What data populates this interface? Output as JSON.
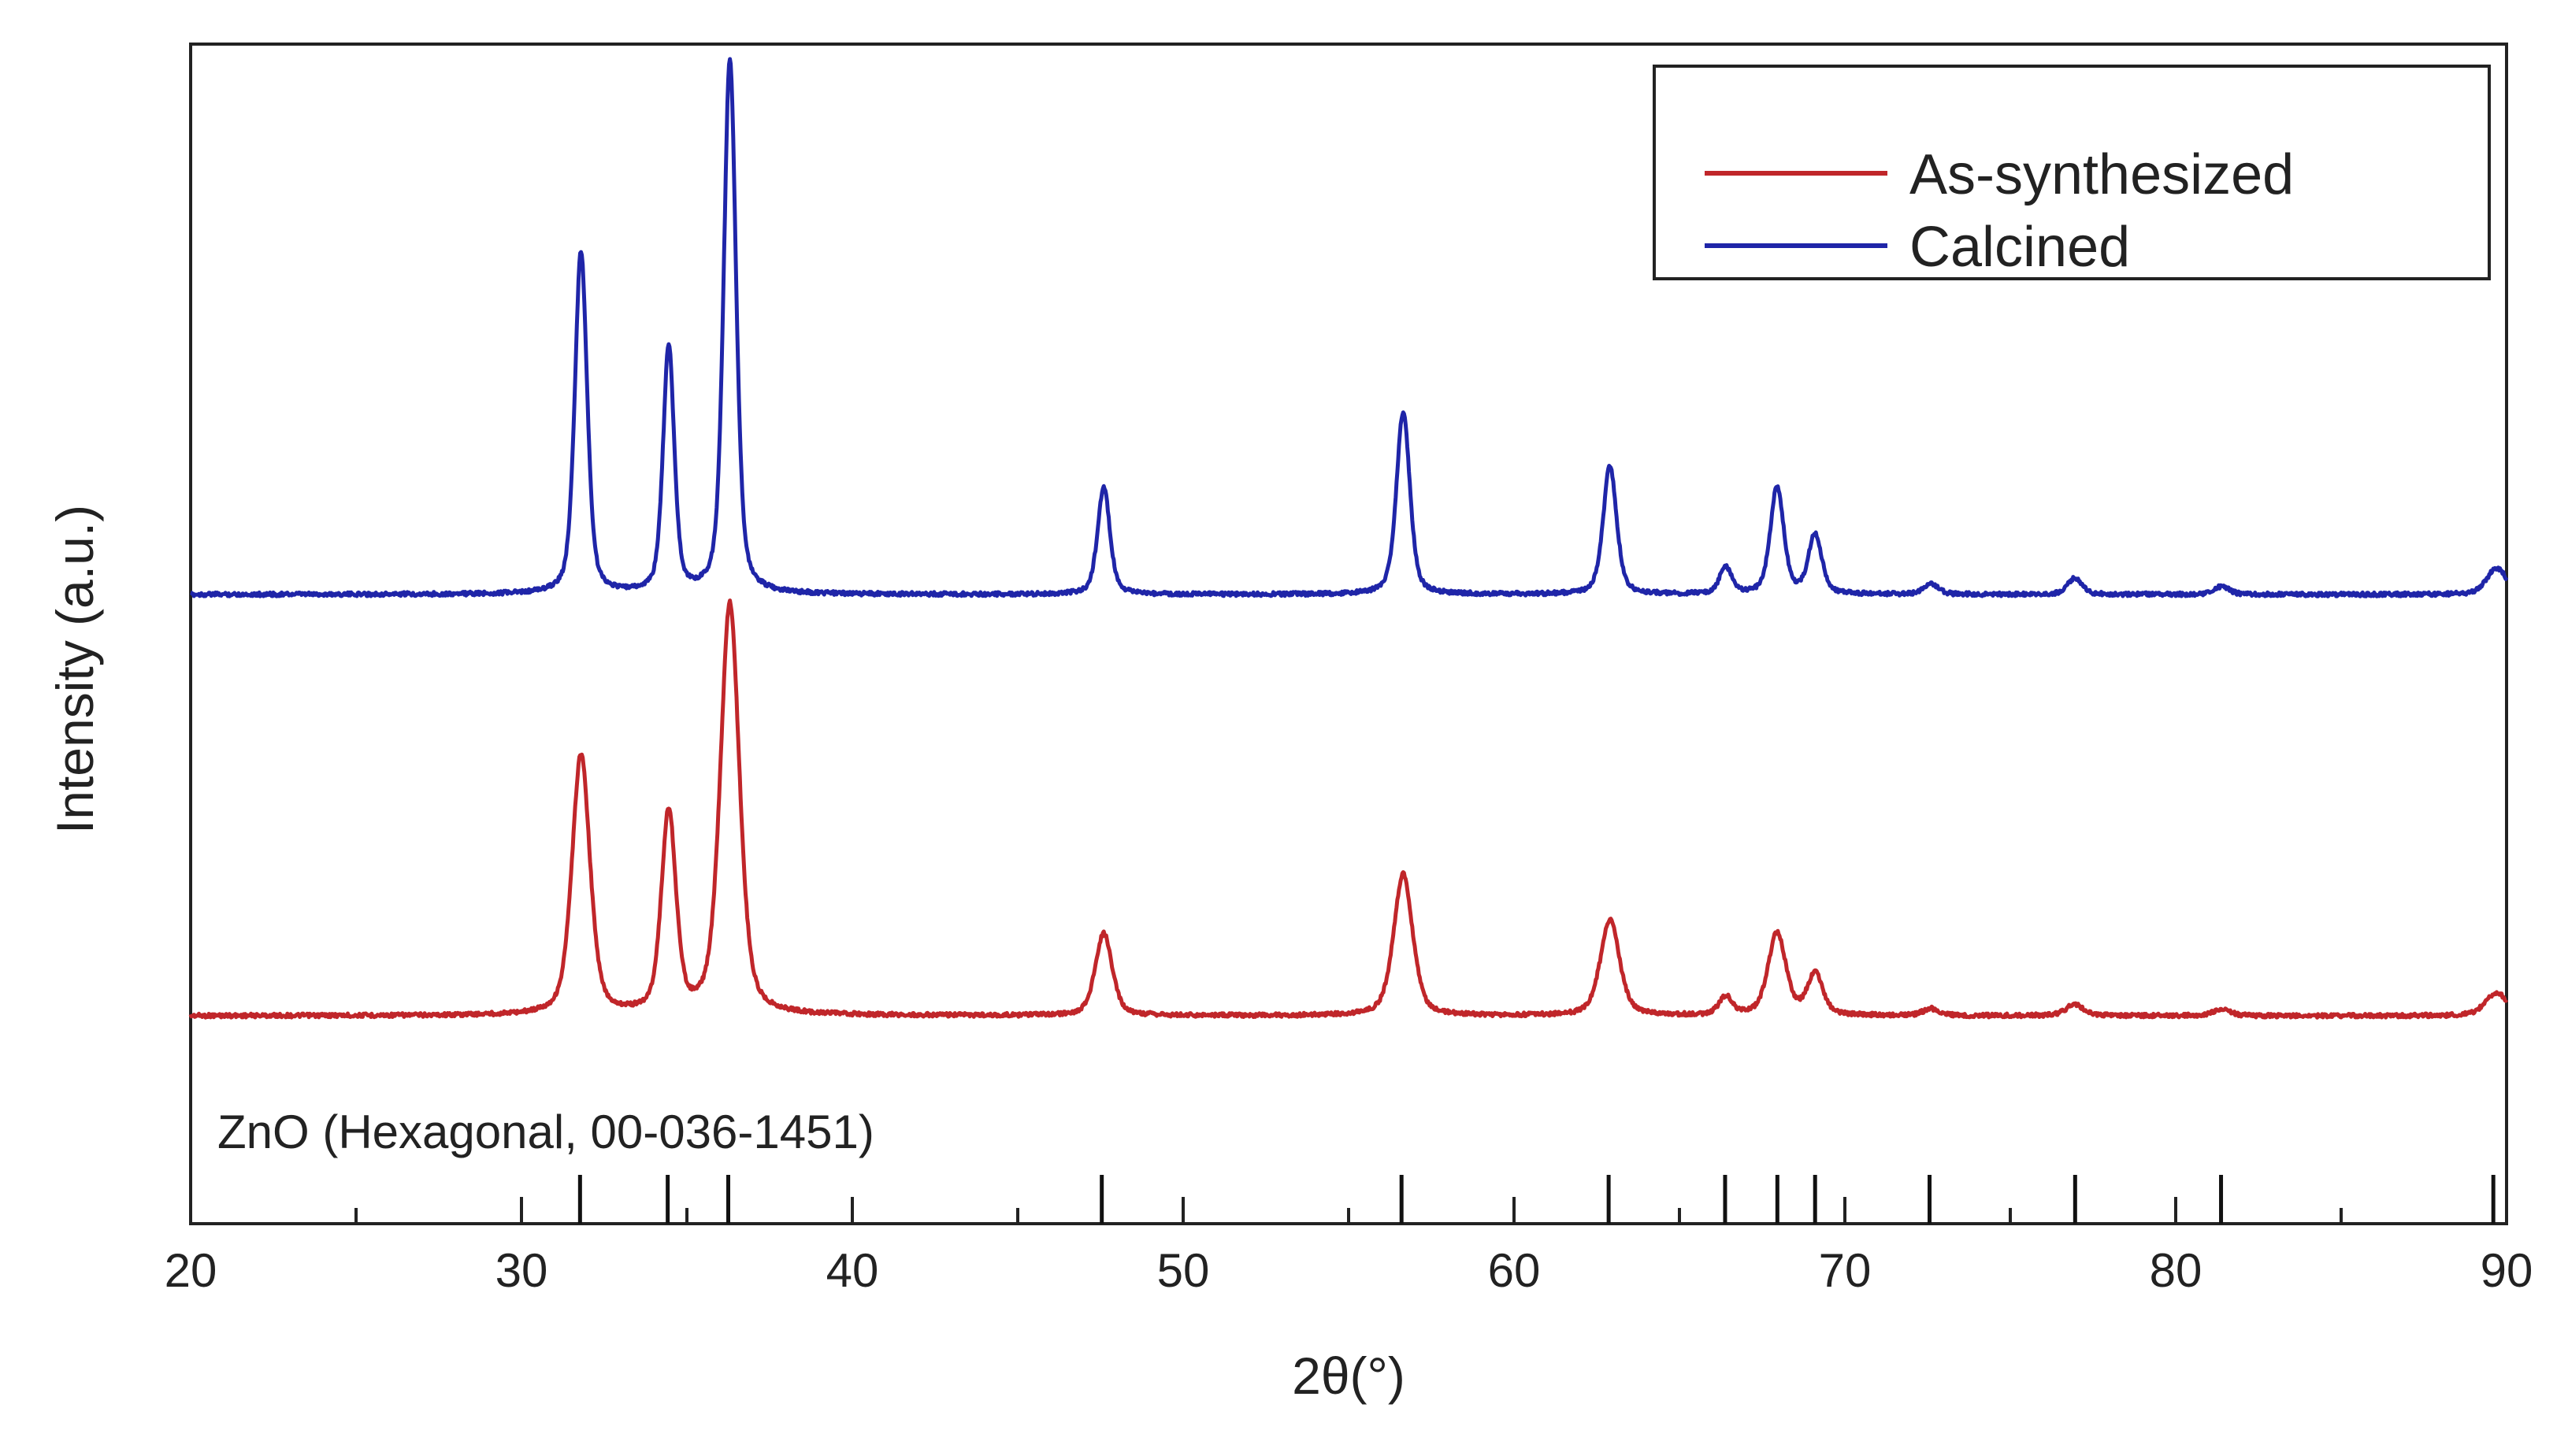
{
  "chart_data": {
    "type": "line",
    "title": "",
    "xlabel": "2θ(°)",
    "ylabel": "Intensity (a.u.)",
    "xlim": [
      20,
      90
    ],
    "x_ticks": [
      20,
      30,
      40,
      50,
      60,
      70,
      80,
      90
    ],
    "y_ticks": [],
    "grid": false,
    "legend_position": "top-right",
    "series": [
      {
        "name": "As-synthesized",
        "color": "#c0262a",
        "baseline": 0.0,
        "peaks": [
          {
            "x": 31.8,
            "height": 0.57,
            "width": 0.32
          },
          {
            "x": 34.45,
            "height": 0.44,
            "width": 0.26
          },
          {
            "x": 36.3,
            "height": 0.9,
            "width": 0.34
          },
          {
            "x": 47.6,
            "height": 0.18,
            "width": 0.3
          },
          {
            "x": 56.65,
            "height": 0.31,
            "width": 0.34
          },
          {
            "x": 62.9,
            "height": 0.21,
            "width": 0.34
          },
          {
            "x": 66.4,
            "height": 0.04,
            "width": 0.24
          },
          {
            "x": 67.95,
            "height": 0.18,
            "width": 0.32
          },
          {
            "x": 69.1,
            "height": 0.09,
            "width": 0.28
          },
          {
            "x": 72.6,
            "height": 0.015,
            "width": 0.28
          },
          {
            "x": 76.95,
            "height": 0.025,
            "width": 0.32
          },
          {
            "x": 81.4,
            "height": 0.015,
            "width": 0.3
          },
          {
            "x": 89.7,
            "height": 0.05,
            "width": 0.4
          }
        ]
      },
      {
        "name": "Calcined",
        "color": "#1f25a8",
        "baseline": 0.0,
        "peaks": [
          {
            "x": 31.8,
            "height": 0.64,
            "width": 0.22
          },
          {
            "x": 34.45,
            "height": 0.46,
            "width": 0.2
          },
          {
            "x": 36.3,
            "height": 1.0,
            "width": 0.22
          },
          {
            "x": 47.6,
            "height": 0.2,
            "width": 0.22
          },
          {
            "x": 56.65,
            "height": 0.34,
            "width": 0.24
          },
          {
            "x": 62.9,
            "height": 0.24,
            "width": 0.24
          },
          {
            "x": 66.4,
            "height": 0.05,
            "width": 0.22
          },
          {
            "x": 67.95,
            "height": 0.2,
            "width": 0.24
          },
          {
            "x": 69.1,
            "height": 0.11,
            "width": 0.24
          },
          {
            "x": 72.6,
            "height": 0.02,
            "width": 0.26
          },
          {
            "x": 76.95,
            "height": 0.03,
            "width": 0.26
          },
          {
            "x": 81.4,
            "height": 0.015,
            "width": 0.26
          },
          {
            "x": 89.7,
            "height": 0.05,
            "width": 0.35
          }
        ]
      }
    ],
    "reference": {
      "label": "ZnO (Hexagonal, 00-036-1451)",
      "positions": [
        31.77,
        34.42,
        36.25,
        47.54,
        56.6,
        62.86,
        66.38,
        67.96,
        69.1,
        72.56,
        76.96,
        81.37,
        89.6
      ]
    }
  }
}
